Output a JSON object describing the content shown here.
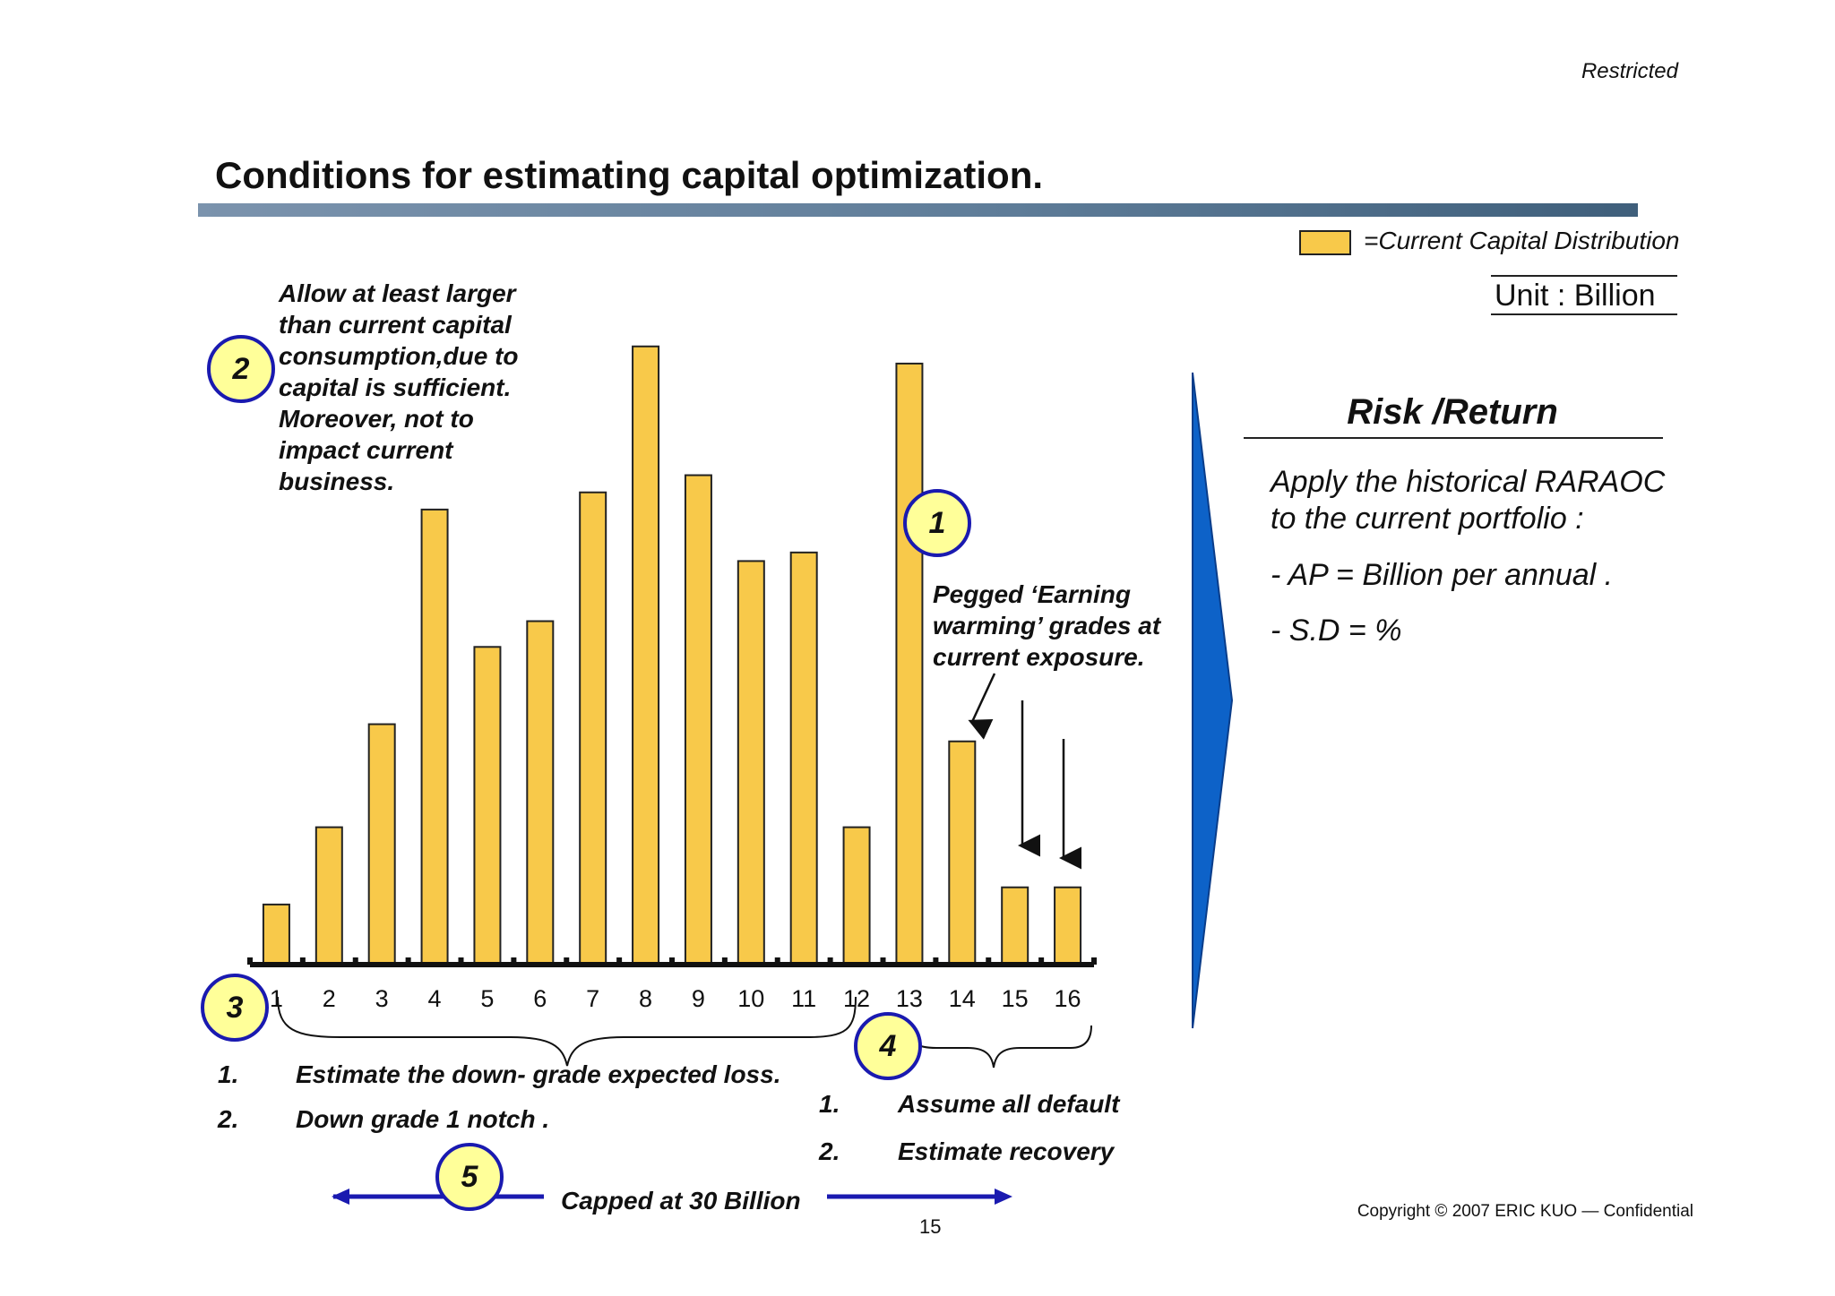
{
  "header": {
    "classification": "Restricted",
    "title": "Conditions for estimating capital optimization."
  },
  "legend": {
    "swatch_color": "#f8c94a",
    "label": "=Current Capital Distribution",
    "unit": "Unit : Billion"
  },
  "chart_data": {
    "type": "bar",
    "title": "",
    "xlabel": "",
    "ylabel": "",
    "categories": [
      "1",
      "2",
      "3",
      "4",
      "5",
      "6",
      "7",
      "8",
      "9",
      "10",
      "11",
      "12",
      "13",
      "14",
      "15",
      "16"
    ],
    "values": [
      7,
      16,
      28,
      53,
      37,
      40,
      55,
      72,
      57,
      47,
      48,
      16,
      70,
      26,
      9,
      9
    ],
    "ylim": [
      0,
      75
    ],
    "bar_color": "#f8c94a",
    "grid": false,
    "legend": "top-right"
  },
  "notes": {
    "allow": "Allow at least larger than current capital consumption,due to capital is sufficient. Moreover, not to impact current business.",
    "pegged": "Pegged ‘Earning warming’ grades at current exposure."
  },
  "badges": {
    "b1": "1",
    "b2": "2",
    "b3": "3",
    "b4": "4",
    "b5": "5"
  },
  "risk": {
    "title": "Risk /Return",
    "description": "Apply the historical RARAOC to the current portfolio :",
    "ap": "- AP = Billion per annual .",
    "sd": "- S.D = %"
  },
  "group_left": {
    "items": [
      {
        "num": "1.",
        "text": "Estimate the down- grade expected loss."
      },
      {
        "num": "2.",
        "text": "Down grade 1 notch ."
      }
    ]
  },
  "group_right": {
    "items": [
      {
        "num": "1.",
        "text": "Assume all default"
      },
      {
        "num": "2.",
        "text": "Estimate recovery"
      }
    ]
  },
  "cap": {
    "label": "Capped at 30 Billion"
  },
  "footer": {
    "page": "15",
    "copyright": "Copyright © 2007 ERIC KUO — Confidential"
  },
  "colors": {
    "navy": "#1a1ab0",
    "arrow_blue": "#0d62c8",
    "badge_fill": "#ffff99"
  }
}
